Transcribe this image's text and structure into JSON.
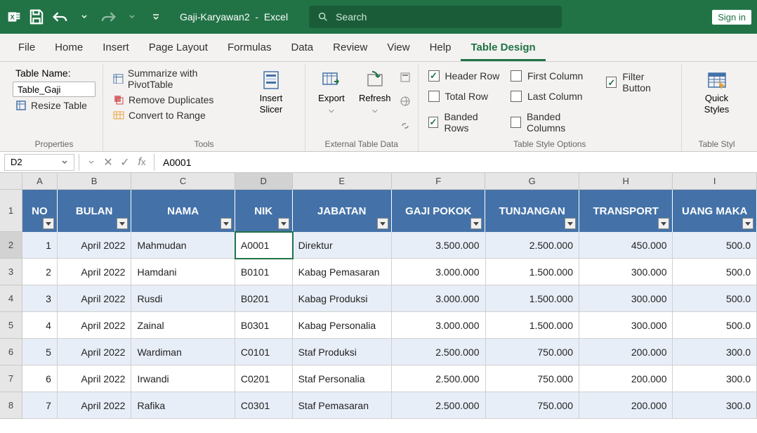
{
  "titlebar": {
    "filename": "Gaji-Karyawan2",
    "app": "Excel",
    "search_placeholder": "Search",
    "signin": "Sign in"
  },
  "tabs": {
    "file": "File",
    "home": "Home",
    "insert": "Insert",
    "page_layout": "Page Layout",
    "formulas": "Formulas",
    "data": "Data",
    "review": "Review",
    "view": "View",
    "help": "Help",
    "table_design": "Table Design"
  },
  "ribbon": {
    "properties": {
      "label": "Properties",
      "table_name_label": "Table Name:",
      "table_name_value": "Table_Gaji",
      "resize_table": "Resize Table"
    },
    "tools": {
      "label": "Tools",
      "summarize": "Summarize with PivotTable",
      "remove_dupes": "Remove Duplicates",
      "convert_range": "Convert to Range",
      "insert_slicer": "Insert Slicer"
    },
    "external": {
      "label": "External Table Data",
      "export": "Export",
      "refresh": "Refresh"
    },
    "style_options": {
      "label": "Table Style Options",
      "header_row": "Header Row",
      "total_row": "Total Row",
      "banded_rows": "Banded Rows",
      "first_column": "First Column",
      "last_column": "Last Column",
      "banded_columns": "Banded Columns",
      "filter_button": "Filter Button"
    },
    "table_styles": {
      "label": "Table Styl",
      "quick_styles": "Quick Styles"
    }
  },
  "formula_bar": {
    "cell_ref": "D2",
    "value": "A0001"
  },
  "columns": {
    "letters": [
      "A",
      "B",
      "C",
      "D",
      "E",
      "F",
      "G",
      "H",
      "I"
    ],
    "headers": [
      "NO",
      "BULAN",
      "NAMA",
      "NIK",
      "JABATAN",
      "GAJI POKOK",
      "TUNJANGAN",
      "TRANSPORT",
      "UANG MAKA"
    ]
  },
  "row_numbers": [
    "1",
    "2",
    "3",
    "4",
    "5",
    "6",
    "7",
    "8"
  ],
  "table": {
    "header_bg": "#4472a8",
    "band_bg": "#e8eef7",
    "rows": [
      {
        "no": "1",
        "bulan": "April 2022",
        "nama": "Mahmudan",
        "nik": "A0001",
        "jabatan": "Direktur",
        "gaji": "3.500.000",
        "tunjangan": "2.500.000",
        "transport": "450.000",
        "uang": "500.0"
      },
      {
        "no": "2",
        "bulan": "April 2022",
        "nama": "Hamdani",
        "nik": "B0101",
        "jabatan": "Kabag Pemasaran",
        "gaji": "3.000.000",
        "tunjangan": "1.500.000",
        "transport": "300.000",
        "uang": "500.0"
      },
      {
        "no": "3",
        "bulan": "April 2022",
        "nama": "Rusdi",
        "nik": "B0201",
        "jabatan": "Kabag Produksi",
        "gaji": "3.000.000",
        "tunjangan": "1.500.000",
        "transport": "300.000",
        "uang": "500.0"
      },
      {
        "no": "4",
        "bulan": "April 2022",
        "nama": "Zainal",
        "nik": "B0301",
        "jabatan": "Kabag Personalia",
        "gaji": "3.000.000",
        "tunjangan": "1.500.000",
        "transport": "300.000",
        "uang": "500.0"
      },
      {
        "no": "5",
        "bulan": "April 2022",
        "nama": "Wardiman",
        "nik": "C0101",
        "jabatan": "Staf Produksi",
        "gaji": "2.500.000",
        "tunjangan": "750.000",
        "transport": "200.000",
        "uang": "300.0"
      },
      {
        "no": "6",
        "bulan": "April 2022",
        "nama": "Irwandi",
        "nik": "C0201",
        "jabatan": "Staf Personalia",
        "gaji": "2.500.000",
        "tunjangan": "750.000",
        "transport": "200.000",
        "uang": "300.0"
      },
      {
        "no": "7",
        "bulan": "April 2022",
        "nama": "Rafika",
        "nik": "C0301",
        "jabatan": "Staf Pemasaran",
        "gaji": "2.500.000",
        "tunjangan": "750.000",
        "transport": "200.000",
        "uang": "300.0"
      }
    ]
  },
  "selected_cell": {
    "row": 0,
    "col": "nik"
  }
}
